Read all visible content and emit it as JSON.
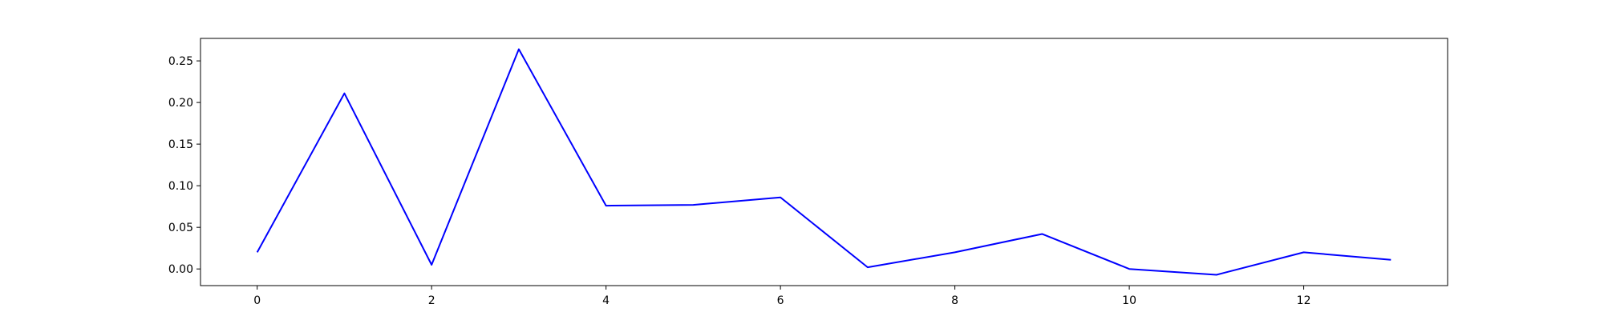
{
  "chart_data": {
    "type": "line",
    "title": "",
    "xlabel": "",
    "ylabel": "",
    "xlim": [
      -0.65,
      13.65
    ],
    "ylim": [
      -0.02,
      0.277
    ],
    "x_ticks": [
      0,
      2,
      4,
      6,
      8,
      10,
      12
    ],
    "x_tick_labels": [
      "0",
      "2",
      "4",
      "6",
      "8",
      "10",
      "12"
    ],
    "y_ticks": [
      0.0,
      0.05,
      0.1,
      0.15,
      0.2,
      0.25
    ],
    "y_tick_labels": [
      "0.00",
      "0.05",
      "0.10",
      "0.15",
      "0.20",
      "0.25"
    ],
    "grid": false,
    "series": [
      {
        "color": "#0000ff",
        "x": [
          0,
          1,
          2,
          3,
          4,
          5,
          6,
          7,
          8,
          9,
          10,
          11,
          12,
          13
        ],
        "y": [
          0.02,
          0.211,
          0.005,
          0.264,
          0.076,
          0.077,
          0.086,
          0.002,
          0.02,
          0.042,
          0.0,
          -0.007,
          0.02,
          0.011
        ]
      }
    ]
  }
}
